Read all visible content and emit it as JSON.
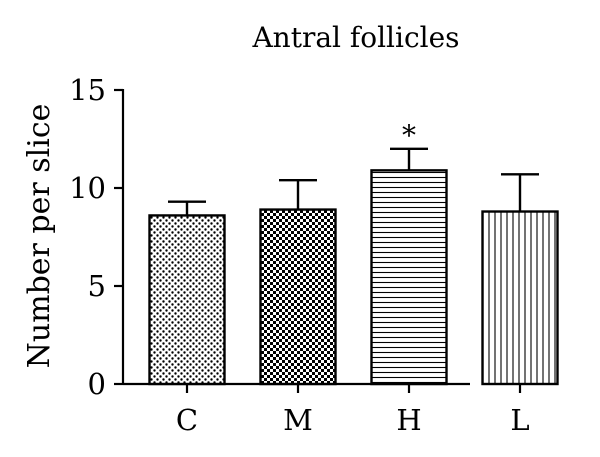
{
  "chart_data": {
    "type": "bar",
    "title": "Antral follicles",
    "ylabel": "Number per slice",
    "xlabel": "",
    "ylim": [
      0,
      15
    ],
    "yticks": [
      0,
      5,
      10,
      15
    ],
    "categories": [
      "C",
      "M",
      "H",
      "L"
    ],
    "values": [
      8.6,
      8.9,
      10.9,
      8.8
    ],
    "errors": [
      0.7,
      1.5,
      1.1,
      1.9
    ],
    "annotations": [
      "",
      "",
      "*",
      ""
    ],
    "patterns": [
      "dots",
      "checker",
      "horizontal-lines",
      "vertical-lines"
    ],
    "grid": false,
    "legend": "none"
  }
}
